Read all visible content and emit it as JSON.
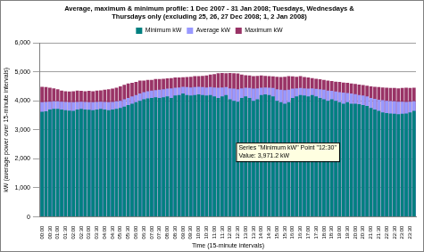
{
  "chart_data": {
    "type": "bar",
    "title": [
      "Average, maximum & minimum profile: 1 Dec 2007 - 31 Jan 2008; Tuesdays, Wednesdays &",
      "Thursdays only (excluding 25, 26, 27 Dec 2008; 1, 2 Jan 2008)"
    ],
    "x_label": "Time (15-minute intervals)",
    "y_label": "kW (average power over 15-minute intervals)",
    "categories": [
      "00:00",
      null,
      "00:30",
      null,
      "01:00",
      null,
      "01:30",
      null,
      "02:00",
      null,
      "02:30",
      null,
      "03:00",
      null,
      "03:30",
      null,
      "04:00",
      null,
      "04:30",
      null,
      "05:00",
      null,
      "05:30",
      null,
      "06:00",
      null,
      "06:30",
      null,
      "07:00",
      null,
      "07:30",
      null,
      "08:00",
      null,
      "08:30",
      null,
      "09:00",
      null,
      "09:30",
      null,
      "10:00",
      null,
      "10:30",
      null,
      "11:00",
      null,
      "11:30",
      null,
      "12:00",
      null,
      "12:30",
      null,
      "13:00",
      null,
      "13:30",
      null,
      "14:00",
      null,
      "14:30",
      null,
      "15:00",
      null,
      "15:30",
      null,
      "16:00",
      null,
      "16:30",
      null,
      "17:00",
      null,
      "17:30",
      null,
      "18:00",
      null,
      "18:30",
      null,
      "19:00",
      null,
      "19:30",
      null,
      "20:00",
      null,
      "20:30",
      null,
      "21:00",
      null,
      "21:30",
      null,
      "22:00",
      null,
      "22:30",
      null,
      "23:00",
      null,
      "23:30",
      null
    ],
    "series": [
      {
        "name": "Maximum kW",
        "color": "#993366",
        "values": [
          4480,
          4470,
          4450,
          4430,
          4400,
          4350,
          4330,
          4320,
          4330,
          4350,
          4340,
          4330,
          4340,
          4330,
          4350,
          4360,
          4380,
          4400,
          4420,
          4450,
          4500,
          4550,
          4600,
          4620,
          4650,
          4700,
          4700,
          4720,
          4720,
          4750,
          4750,
          4760,
          4770,
          4780,
          4800,
          4800,
          4810,
          4820,
          4830,
          4850,
          4850,
          4860,
          4870,
          4900,
          4920,
          4950,
          4960,
          4950,
          4960,
          4950,
          4940,
          4900,
          4880,
          4870,
          4850,
          4860,
          4870,
          4860,
          4850,
          4840,
          4830,
          4820,
          4830,
          4850,
          4840,
          4830,
          4850,
          4820,
          4800,
          4780,
          4760,
          4740,
          4720,
          4700,
          4680,
          4660,
          4650,
          4630,
          4620,
          4600,
          4580,
          4560,
          4540,
          4520,
          4500,
          4480,
          4470,
          4460,
          4450,
          4440,
          4440,
          4430,
          4440,
          4450,
          4440,
          4450
        ]
      },
      {
        "name": "Average kW",
        "color": "#9999ff",
        "values": [
          3950,
          3960,
          3970,
          3980,
          3980,
          3970,
          3960,
          3950,
          3950,
          3960,
          3970,
          3960,
          3950,
          3950,
          3960,
          3970,
          3960,
          3950,
          3960,
          3980,
          4000,
          4050,
          4100,
          4150,
          4200,
          4250,
          4300,
          4330,
          4350,
          4370,
          4380,
          4400,
          4420,
          4430,
          4450,
          4460,
          4480,
          4470,
          4460,
          4470,
          4480,
          4470,
          4460,
          4470,
          4460,
          4450,
          4460,
          4470,
          4430,
          4420,
          4400,
          4430,
          4450,
          4440,
          4420,
          4430,
          4450,
          4460,
          4450,
          4440,
          4400,
          4380,
          4370,
          4380,
          4420,
          4430,
          4440,
          4430,
          4420,
          4430,
          4410,
          4400,
          4380,
          4350,
          4340,
          4320,
          4300,
          4280,
          4270,
          4250,
          4230,
          4200,
          4180,
          4150,
          4100,
          4070,
          4040,
          4020,
          4000,
          3990,
          3980,
          3970,
          3970,
          3960,
          3970,
          3980
        ]
      },
      {
        "name": "Minimum kW",
        "color": "#008080",
        "values": [
          3620,
          3640,
          3700,
          3720,
          3720,
          3700,
          3680,
          3660,
          3650,
          3700,
          3720,
          3700,
          3690,
          3680,
          3700,
          3720,
          3700,
          3680,
          3700,
          3720,
          3750,
          3800,
          3850,
          3900,
          3950,
          4000,
          4050,
          4080,
          4100,
          4120,
          4100,
          4120,
          4150,
          4100,
          4180,
          4200,
          4250,
          4200,
          4180,
          4200,
          4220,
          4200,
          4180,
          4200,
          4150,
          4100,
          4150,
          4200,
          4050,
          4000,
          3971.2,
          4100,
          4150,
          4100,
          4000,
          4050,
          4200,
          4220,
          4200,
          4150,
          4000,
          3950,
          3900,
          3950,
          4100,
          4150,
          4200,
          4180,
          4150,
          4200,
          4150,
          4100,
          4050,
          4000,
          4050,
          4000,
          3950,
          3900,
          3950,
          3900,
          3900,
          3880,
          3850,
          3820,
          3750,
          3700,
          3650,
          3600,
          3580,
          3560,
          3550,
          3540,
          3550,
          3560,
          3600,
          3650
        ]
      }
    ],
    "ylim": [
      0,
      6000
    ],
    "yticks": [
      0,
      {
        "value": 1000,
        "label": "1,000"
      },
      {
        "value": 2000,
        "label": "2,000"
      },
      {
        "value": 3000,
        "label": "3,000"
      },
      {
        "value": 4000,
        "label": "4,000"
      },
      {
        "value": 5000,
        "label": "5,000"
      },
      {
        "value": 6000,
        "label": "6,000"
      }
    ],
    "grid": true,
    "legend": "top",
    "stacked": false,
    "annotations": [
      {
        "x": "12:30",
        "y": 3971.2,
        "lines": [
          "Series \"Minimum kW\" Point \"12:30\"",
          "Value: 3,971.2 kW"
        ]
      }
    ]
  }
}
